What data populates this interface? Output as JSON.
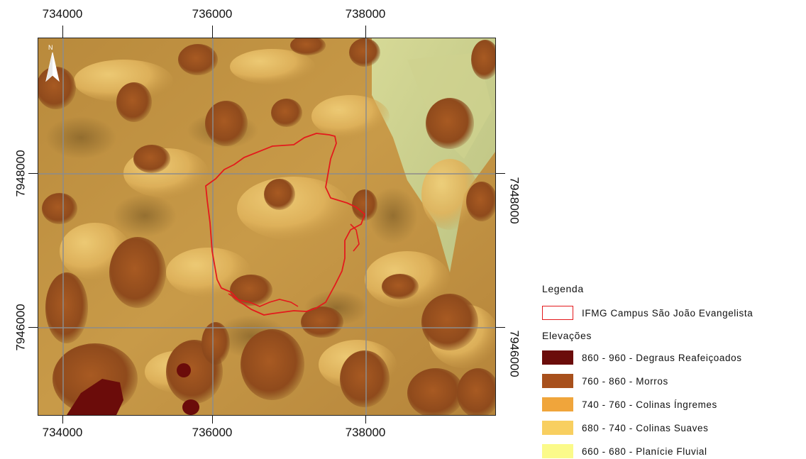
{
  "map": {
    "grid_x_labels": [
      "734000",
      "736000",
      "738000"
    ],
    "grid_y_labels": [
      "7948000",
      "7946000"
    ],
    "north_arrow_label": "N",
    "boundary_color": "#e31a1c",
    "grid_color": "#8c8c8c"
  },
  "legend": {
    "title": "Legenda",
    "boundary_label": "IFMG Campus São João Evangelista",
    "elevation_title": "Elevações",
    "classes": [
      {
        "label": "860 - 960 - Degraus Reafeiçoados",
        "color": "#6b0c0a"
      },
      {
        "label": "760 - 860 - Morros",
        "color": "#a8501c"
      },
      {
        "label": "740 - 760 - Colinas Íngremes",
        "color": "#f0a53b"
      },
      {
        "label": "680 - 740 - Colinas Suaves",
        "color": "#f8cf60"
      },
      {
        "label": "660 - 680 - Planície Fluvial",
        "color": "#fbfa8a"
      }
    ]
  }
}
